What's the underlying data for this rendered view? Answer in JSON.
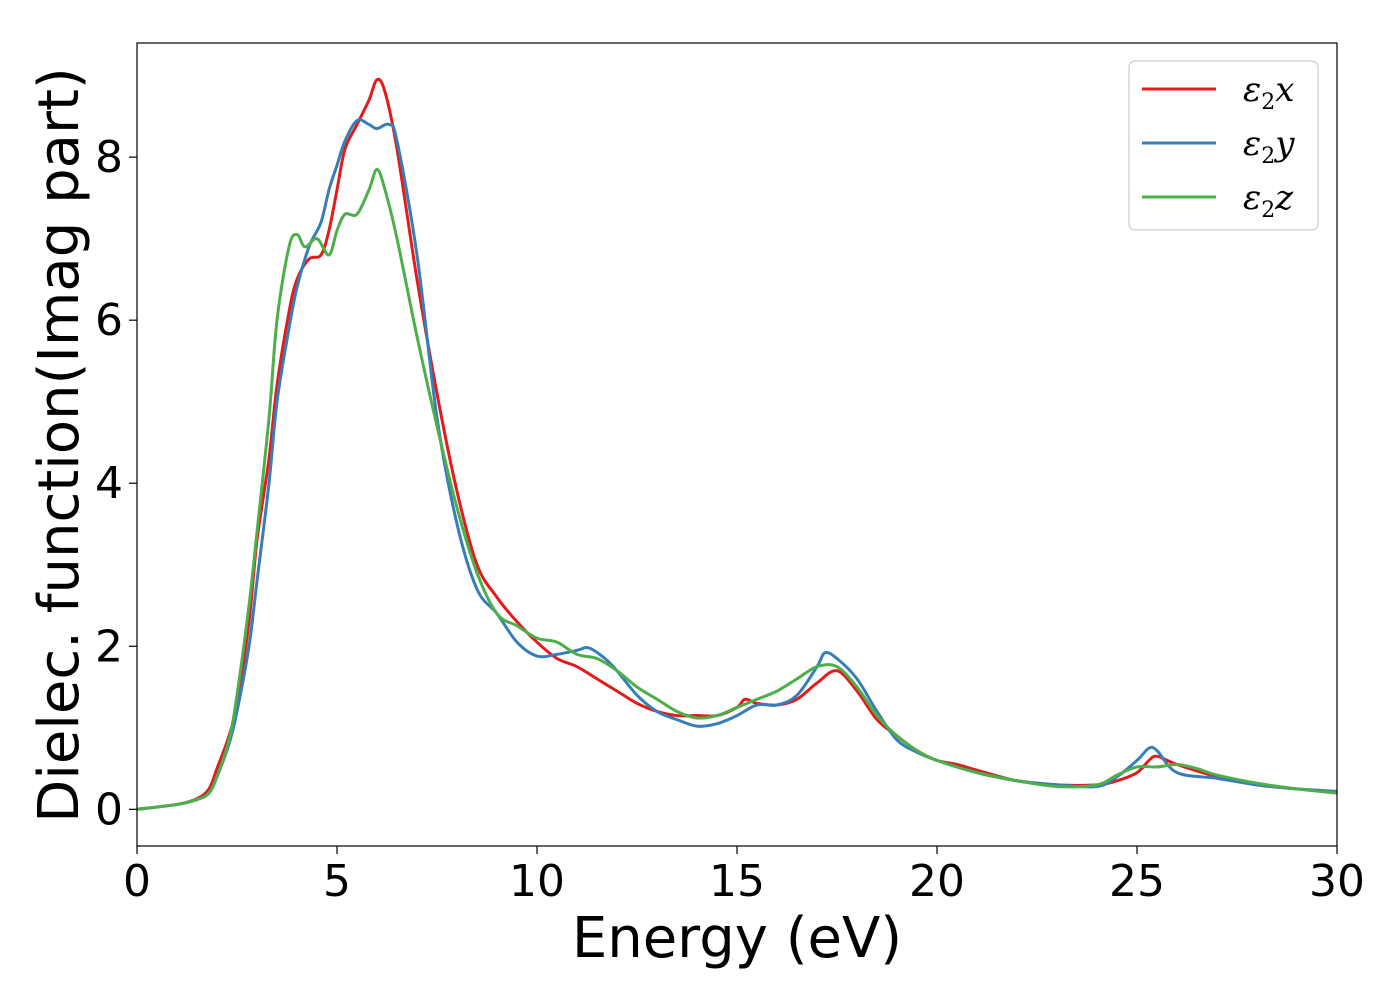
{
  "chart_data": {
    "type": "line",
    "title": "",
    "xlabel": "Energy (eV)",
    "ylabel": "Dielec. function(Imag part)",
    "xlim": [
      0,
      30
    ],
    "ylim": [
      -0.45,
      9.4
    ],
    "xticks": [
      0,
      5,
      10,
      15,
      20,
      25,
      30
    ],
    "yticks": [
      0,
      2,
      4,
      6,
      8
    ],
    "grid": false,
    "legend_position": "top-right",
    "series": [
      {
        "name": "ε2x",
        "legend_base": "ε",
        "legend_sub": "2",
        "legend_suffix": "x",
        "color": "#e41a1c",
        "points": [
          [
            0,
            0
          ],
          [
            1,
            0.06
          ],
          [
            1.5,
            0.13
          ],
          [
            1.8,
            0.25
          ],
          [
            2,
            0.5
          ],
          [
            2.3,
            0.9
          ],
          [
            2.5,
            1.3
          ],
          [
            2.8,
            2.3
          ],
          [
            3,
            3.3
          ],
          [
            3.3,
            4.3
          ],
          [
            3.5,
            5.2
          ],
          [
            3.8,
            6.1
          ],
          [
            4,
            6.5
          ],
          [
            4.3,
            6.75
          ],
          [
            4.6,
            6.8
          ],
          [
            4.8,
            7.1
          ],
          [
            5,
            7.6
          ],
          [
            5.2,
            8.1
          ],
          [
            5.5,
            8.4
          ],
          [
            5.8,
            8.7
          ],
          [
            6,
            8.95
          ],
          [
            6.2,
            8.8
          ],
          [
            6.5,
            8.1
          ],
          [
            7,
            6.5
          ],
          [
            7.5,
            5.1
          ],
          [
            8,
            3.9
          ],
          [
            8.5,
            3.0
          ],
          [
            9,
            2.6
          ],
          [
            9.5,
            2.3
          ],
          [
            10,
            2.05
          ],
          [
            10.5,
            1.85
          ],
          [
            11,
            1.75
          ],
          [
            11.5,
            1.6
          ],
          [
            12,
            1.45
          ],
          [
            12.5,
            1.3
          ],
          [
            13,
            1.2
          ],
          [
            13.5,
            1.15
          ],
          [
            14,
            1.15
          ],
          [
            14.5,
            1.15
          ],
          [
            15,
            1.25
          ],
          [
            15.2,
            1.35
          ],
          [
            15.5,
            1.3
          ],
          [
            16,
            1.28
          ],
          [
            16.5,
            1.35
          ],
          [
            17,
            1.55
          ],
          [
            17.5,
            1.7
          ],
          [
            18,
            1.45
          ],
          [
            18.5,
            1.1
          ],
          [
            19,
            0.9
          ],
          [
            19.5,
            0.72
          ],
          [
            20,
            0.6
          ],
          [
            20.5,
            0.55
          ],
          [
            21,
            0.48
          ],
          [
            22,
            0.35
          ],
          [
            23,
            0.3
          ],
          [
            24,
            0.3
          ],
          [
            24.5,
            0.35
          ],
          [
            25,
            0.45
          ],
          [
            25.3,
            0.6
          ],
          [
            25.5,
            0.65
          ],
          [
            26,
            0.55
          ],
          [
            27,
            0.4
          ],
          [
            28,
            0.3
          ],
          [
            29,
            0.25
          ],
          [
            30,
            0.2
          ]
        ]
      },
      {
        "name": "ε2y",
        "legend_base": "ε",
        "legend_sub": "2",
        "legend_suffix": "y",
        "color": "#377eb8",
        "points": [
          [
            0,
            0
          ],
          [
            1,
            0.06
          ],
          [
            1.5,
            0.12
          ],
          [
            1.8,
            0.2
          ],
          [
            2,
            0.4
          ],
          [
            2.3,
            0.8
          ],
          [
            2.5,
            1.2
          ],
          [
            2.8,
            2.0
          ],
          [
            3,
            2.8
          ],
          [
            3.3,
            4.0
          ],
          [
            3.5,
            5.0
          ],
          [
            3.8,
            5.9
          ],
          [
            4,
            6.4
          ],
          [
            4.3,
            6.9
          ],
          [
            4.6,
            7.2
          ],
          [
            4.8,
            7.6
          ],
          [
            5,
            7.9
          ],
          [
            5.2,
            8.2
          ],
          [
            5.5,
            8.45
          ],
          [
            5.8,
            8.4
          ],
          [
            6,
            8.35
          ],
          [
            6.3,
            8.4
          ],
          [
            6.5,
            8.2
          ],
          [
            7,
            6.8
          ],
          [
            7.5,
            4.8
          ],
          [
            8,
            3.5
          ],
          [
            8.5,
            2.7
          ],
          [
            9,
            2.4
          ],
          [
            9.5,
            2.05
          ],
          [
            10,
            1.88
          ],
          [
            10.5,
            1.9
          ],
          [
            11,
            1.95
          ],
          [
            11.3,
            1.98
          ],
          [
            11.7,
            1.85
          ],
          [
            12,
            1.7
          ],
          [
            12.5,
            1.4
          ],
          [
            13,
            1.2
          ],
          [
            13.5,
            1.1
          ],
          [
            14,
            1.02
          ],
          [
            14.5,
            1.05
          ],
          [
            15,
            1.15
          ],
          [
            15.5,
            1.28
          ],
          [
            16,
            1.28
          ],
          [
            16.5,
            1.4
          ],
          [
            17,
            1.75
          ],
          [
            17.2,
            1.92
          ],
          [
            17.5,
            1.85
          ],
          [
            18,
            1.6
          ],
          [
            18.5,
            1.2
          ],
          [
            19,
            0.85
          ],
          [
            19.5,
            0.7
          ],
          [
            20,
            0.6
          ],
          [
            21,
            0.45
          ],
          [
            22,
            0.35
          ],
          [
            23,
            0.3
          ],
          [
            24,
            0.28
          ],
          [
            24.5,
            0.4
          ],
          [
            25,
            0.6
          ],
          [
            25.3,
            0.75
          ],
          [
            25.5,
            0.72
          ],
          [
            26,
            0.45
          ],
          [
            27,
            0.38
          ],
          [
            28,
            0.3
          ],
          [
            29,
            0.25
          ],
          [
            30,
            0.22
          ]
        ]
      },
      {
        "name": "ε2z",
        "legend_base": "ε",
        "legend_sub": "2",
        "legend_suffix": "z",
        "color": "#4daf4a",
        "points": [
          [
            0,
            0
          ],
          [
            1,
            0.06
          ],
          [
            1.5,
            0.12
          ],
          [
            1.8,
            0.2
          ],
          [
            2,
            0.4
          ],
          [
            2.3,
            0.85
          ],
          [
            2.5,
            1.4
          ],
          [
            2.8,
            2.5
          ],
          [
            3,
            3.4
          ],
          [
            3.3,
            4.8
          ],
          [
            3.5,
            6.0
          ],
          [
            3.8,
            6.9
          ],
          [
            4,
            7.05
          ],
          [
            4.2,
            6.9
          ],
          [
            4.5,
            7.0
          ],
          [
            4.8,
            6.8
          ],
          [
            5,
            7.1
          ],
          [
            5.2,
            7.3
          ],
          [
            5.5,
            7.3
          ],
          [
            5.8,
            7.6
          ],
          [
            6,
            7.85
          ],
          [
            6.2,
            7.6
          ],
          [
            6.5,
            7.0
          ],
          [
            7,
            5.8
          ],
          [
            7.5,
            4.7
          ],
          [
            8,
            3.7
          ],
          [
            8.5,
            2.9
          ],
          [
            9,
            2.4
          ],
          [
            9.5,
            2.25
          ],
          [
            10,
            2.1
          ],
          [
            10.5,
            2.05
          ],
          [
            11,
            1.9
          ],
          [
            11.5,
            1.85
          ],
          [
            12,
            1.7
          ],
          [
            12.5,
            1.5
          ],
          [
            13,
            1.35
          ],
          [
            13.5,
            1.2
          ],
          [
            14,
            1.12
          ],
          [
            14.5,
            1.15
          ],
          [
            15,
            1.25
          ],
          [
            15.5,
            1.35
          ],
          [
            16,
            1.45
          ],
          [
            16.5,
            1.6
          ],
          [
            17,
            1.75
          ],
          [
            17.5,
            1.75
          ],
          [
            18,
            1.5
          ],
          [
            18.5,
            1.15
          ],
          [
            19,
            0.9
          ],
          [
            19.5,
            0.72
          ],
          [
            20,
            0.6
          ],
          [
            21,
            0.45
          ],
          [
            22,
            0.35
          ],
          [
            23,
            0.28
          ],
          [
            24,
            0.3
          ],
          [
            24.5,
            0.42
          ],
          [
            25,
            0.52
          ],
          [
            25.5,
            0.52
          ],
          [
            26,
            0.55
          ],
          [
            26.5,
            0.5
          ],
          [
            27,
            0.42
          ],
          [
            28,
            0.32
          ],
          [
            29,
            0.25
          ],
          [
            30,
            0.2
          ]
        ]
      }
    ]
  }
}
